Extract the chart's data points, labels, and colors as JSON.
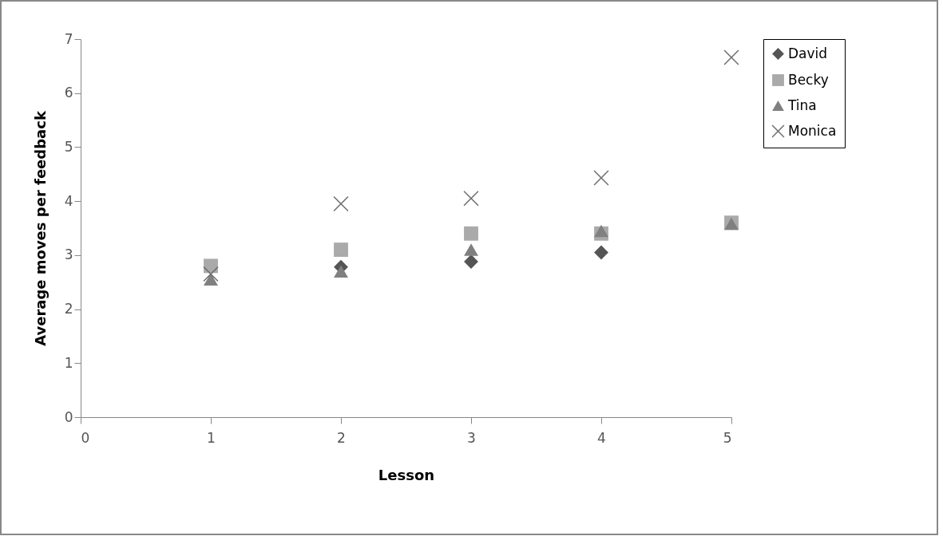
{
  "chart_data": {
    "type": "scatter",
    "xlabel": "Lesson",
    "ylabel": "Average moves per feedback",
    "x": [
      1,
      2,
      3,
      4,
      5
    ],
    "series": [
      {
        "name": "David",
        "color": "#555555",
        "marker": "diamond",
        "values": [
          null,
          2.78,
          2.88,
          3.05,
          null
        ]
      },
      {
        "name": "Becky",
        "color": "#aaaaaa",
        "marker": "square",
        "values": [
          2.8,
          3.1,
          3.4,
          3.4,
          3.6
        ]
      },
      {
        "name": "Tina",
        "color": "#808080",
        "marker": "triangle",
        "values": [
          2.55,
          2.7,
          3.1,
          3.45,
          3.58
        ]
      },
      {
        "name": "Monica",
        "color": "#6e6e6e",
        "marker": "cross",
        "values": [
          2.65,
          3.95,
          4.05,
          4.43,
          6.66
        ]
      }
    ],
    "xlim": [
      0,
      5
    ],
    "xticks": [
      0,
      1,
      2,
      3,
      4,
      5
    ],
    "ylim": [
      0,
      7
    ],
    "yticks": [
      0,
      1,
      2,
      3,
      4,
      5,
      6,
      7
    ],
    "grid": false,
    "legend": "right"
  }
}
